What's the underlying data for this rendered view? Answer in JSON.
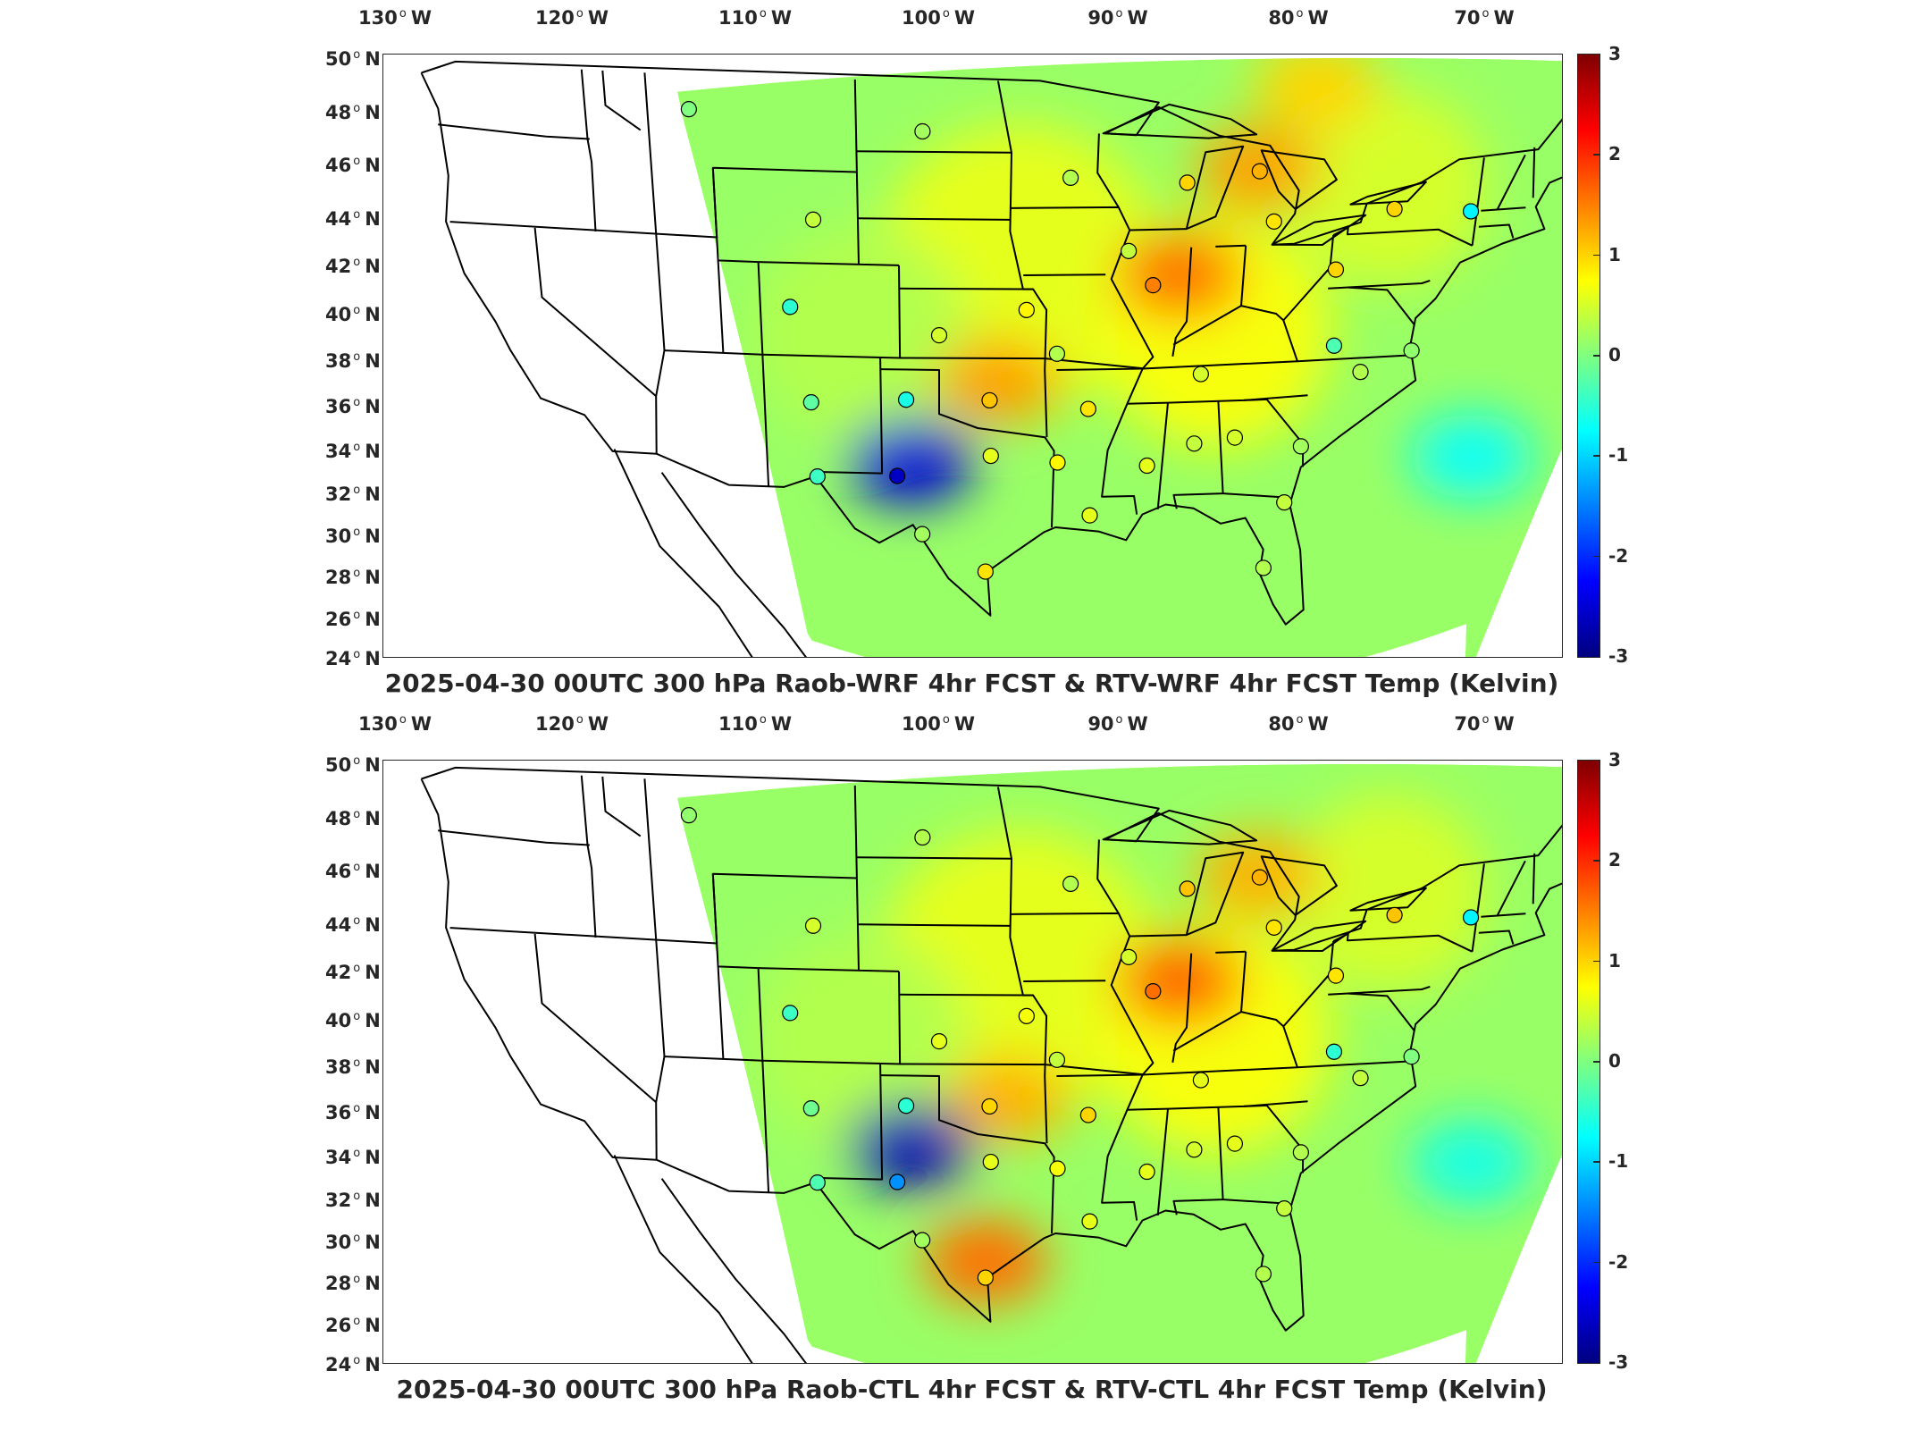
{
  "colormap": "jet",
  "colors": {
    "frame": "#262626",
    "map_lines": "#000000",
    "missing": "#ffffff"
  },
  "panels": [
    {
      "title": "2025-04-30 00UTC 300 hPa Raob-WRF 4hr FCST & RTV-WRF 4hr FCST Temp (Kelvin)",
      "lon_labels": [
        "130",
        "120",
        "110",
        "100",
        "90",
        "80",
        "70"
      ],
      "lon_suffix": "W",
      "lat_labels": [
        "50",
        "48",
        "46",
        "44",
        "42",
        "40",
        "38",
        "36",
        "34",
        "32",
        "30",
        "28",
        "26",
        "24"
      ],
      "lat_suffix": "N",
      "colorbar": {
        "ticks": [
          "3",
          "2",
          "1",
          "0",
          "-1",
          "-2",
          "-3"
        ],
        "min": -3,
        "max": 3
      },
      "field_anomalies": [
        {
          "region": "upper midwest / illinois",
          "lon": -88,
          "lat": 40.5,
          "value": 1.6
        },
        {
          "region": "oklahoma",
          "lon": -97,
          "lat": 36,
          "value": 1.3
        },
        {
          "region": "michigan",
          "lon": -84.5,
          "lat": 45,
          "value": 1.3
        },
        {
          "region": "new mexico / west texas",
          "lon": -101.5,
          "lat": 32.5,
          "value": -2.5
        },
        {
          "region": "ontario",
          "lon": -82,
          "lat": 48.5,
          "value": 1.0
        },
        {
          "region": "atlantic offshore",
          "lon": -72,
          "lat": 32,
          "value": -0.7
        }
      ],
      "raob_stations": [
        {
          "lon": -112.0,
          "lat": 47.5,
          "value": 0.0
        },
        {
          "lon": -100.8,
          "lat": 46.8,
          "value": 0.2
        },
        {
          "lon": -93.6,
          "lat": 44.8,
          "value": 0.3
        },
        {
          "lon": -87.9,
          "lat": 44.5,
          "value": 1.0
        },
        {
          "lon": -84.4,
          "lat": 44.9,
          "value": 1.2
        },
        {
          "lon": -106.2,
          "lat": 42.9,
          "value": 0.4
        },
        {
          "lon": -90.6,
          "lat": 41.6,
          "value": 0.4
        },
        {
          "lon": -83.5,
          "lat": 42.7,
          "value": 0.9
        },
        {
          "lon": -77.6,
          "lat": 43.0,
          "value": 1.0
        },
        {
          "lon": -73.8,
          "lat": 42.7,
          "value": -0.8
        },
        {
          "lon": -89.3,
          "lat": 40.1,
          "value": 1.5
        },
        {
          "lon": -80.2,
          "lat": 40.5,
          "value": 1.0
        },
        {
          "lon": -107.5,
          "lat": 39.1,
          "value": -0.5
        },
        {
          "lon": -95.6,
          "lat": 39.1,
          "value": 0.8
        },
        {
          "lon": -100.0,
          "lat": 38.0,
          "value": 0.5
        },
        {
          "lon": -94.0,
          "lat": 37.2,
          "value": 0.3
        },
        {
          "lon": -79.9,
          "lat": 37.2,
          "value": -0.3
        },
        {
          "lon": -86.6,
          "lat": 36.2,
          "value": 0.5
        },
        {
          "lon": -75.9,
          "lat": 36.8,
          "value": 0.1
        },
        {
          "lon": -78.4,
          "lat": 36.0,
          "value": 0.3
        },
        {
          "lon": -106.6,
          "lat": 35.0,
          "value": -0.2
        },
        {
          "lon": -101.7,
          "lat": 35.2,
          "value": -0.6
        },
        {
          "lon": -97.4,
          "lat": 35.2,
          "value": 1.1
        },
        {
          "lon": -92.3,
          "lat": 34.8,
          "value": 0.9
        },
        {
          "lon": -97.3,
          "lat": 32.8,
          "value": 0.6
        },
        {
          "lon": -93.8,
          "lat": 32.5,
          "value": 0.8
        },
        {
          "lon": -89.1,
          "lat": 32.3,
          "value": 0.6
        },
        {
          "lon": -86.7,
          "lat": 33.2,
          "value": 0.4
        },
        {
          "lon": -84.6,
          "lat": 33.4,
          "value": 0.5
        },
        {
          "lon": -81.1,
          "lat": 32.9,
          "value": 0.2
        },
        {
          "lon": -106.4,
          "lat": 31.8,
          "value": -0.4
        },
        {
          "lon": -102.2,
          "lat": 31.9,
          "value": -2.6
        },
        {
          "lon": -92.0,
          "lat": 30.2,
          "value": 0.6
        },
        {
          "lon": -81.7,
          "lat": 30.5,
          "value": 0.4
        },
        {
          "lon": -100.9,
          "lat": 29.4,
          "value": 0.2
        },
        {
          "lon": -97.5,
          "lat": 27.8,
          "value": 0.9
        },
        {
          "lon": -82.5,
          "lat": 27.7,
          "value": 0.3
        }
      ]
    },
    {
      "title": "2025-04-30 00UTC 300 hPa Raob-CTL 4hr FCST & RTV-CTL 4hr FCST Temp (Kelvin)",
      "lon_labels": [
        "130",
        "120",
        "110",
        "100",
        "90",
        "80",
        "70"
      ],
      "lon_suffix": "W",
      "lat_labels": [
        "50",
        "48",
        "46",
        "44",
        "42",
        "40",
        "38",
        "36",
        "34",
        "32",
        "30",
        "28",
        "26",
        "24"
      ],
      "lat_suffix": "N",
      "colorbar": {
        "ticks": [
          "3",
          "2",
          "1",
          "0",
          "-1",
          "-2",
          "-3"
        ],
        "min": -3,
        "max": 3
      },
      "field_anomalies": [
        {
          "region": "upper midwest / illinois",
          "lon": -88,
          "lat": 40.5,
          "value": 1.7
        },
        {
          "region": "oklahoma",
          "lon": -96.5,
          "lat": 35.5,
          "value": 1.2
        },
        {
          "region": "michigan",
          "lon": -84.5,
          "lat": 45,
          "value": 1.2
        },
        {
          "region": "new mexico / west texas",
          "lon": -101.5,
          "lat": 33.5,
          "value": -2.7
        },
        {
          "region": "texas coast",
          "lon": -97.5,
          "lat": 28.5,
          "value": 1.6
        },
        {
          "region": "atlantic offshore",
          "lon": -72,
          "lat": 32,
          "value": -0.6
        }
      ],
      "raob_stations": [
        {
          "lon": -112.0,
          "lat": 47.5,
          "value": 0.1
        },
        {
          "lon": -100.8,
          "lat": 46.8,
          "value": 0.3
        },
        {
          "lon": -93.6,
          "lat": 44.8,
          "value": 0.3
        },
        {
          "lon": -87.9,
          "lat": 44.5,
          "value": 1.1
        },
        {
          "lon": -84.4,
          "lat": 44.9,
          "value": 1.2
        },
        {
          "lon": -106.2,
          "lat": 42.9,
          "value": 0.5
        },
        {
          "lon": -90.6,
          "lat": 41.6,
          "value": 0.5
        },
        {
          "lon": -83.5,
          "lat": 42.7,
          "value": 0.9
        },
        {
          "lon": -77.6,
          "lat": 43.0,
          "value": 1.1
        },
        {
          "lon": -73.8,
          "lat": 42.7,
          "value": -0.8
        },
        {
          "lon": -89.3,
          "lat": 40.1,
          "value": 1.6
        },
        {
          "lon": -80.2,
          "lat": 40.5,
          "value": 0.9
        },
        {
          "lon": -107.5,
          "lat": 39.1,
          "value": -0.4
        },
        {
          "lon": -95.6,
          "lat": 39.1,
          "value": 0.7
        },
        {
          "lon": -100.0,
          "lat": 38.0,
          "value": 0.6
        },
        {
          "lon": -94.0,
          "lat": 37.2,
          "value": 0.4
        },
        {
          "lon": -79.9,
          "lat": 37.2,
          "value": -0.5
        },
        {
          "lon": -86.6,
          "lat": 36.2,
          "value": 0.6
        },
        {
          "lon": -75.9,
          "lat": 36.8,
          "value": 0.0
        },
        {
          "lon": -78.4,
          "lat": 36.0,
          "value": 0.4
        },
        {
          "lon": -106.6,
          "lat": 35.0,
          "value": -0.1
        },
        {
          "lon": -101.7,
          "lat": 35.2,
          "value": -0.5
        },
        {
          "lon": -97.4,
          "lat": 35.2,
          "value": 1.0
        },
        {
          "lon": -92.3,
          "lat": 34.8,
          "value": 1.0
        },
        {
          "lon": -97.3,
          "lat": 32.8,
          "value": 0.6
        },
        {
          "lon": -93.8,
          "lat": 32.5,
          "value": 0.7
        },
        {
          "lon": -89.1,
          "lat": 32.3,
          "value": 0.6
        },
        {
          "lon": -86.7,
          "lat": 33.2,
          "value": 0.5
        },
        {
          "lon": -84.6,
          "lat": 33.4,
          "value": 0.6
        },
        {
          "lon": -81.1,
          "lat": 32.9,
          "value": 0.3
        },
        {
          "lon": -106.4,
          "lat": 31.8,
          "value": -0.3
        },
        {
          "lon": -102.2,
          "lat": 31.9,
          "value": -1.4
        },
        {
          "lon": -92.0,
          "lat": 30.2,
          "value": 0.6
        },
        {
          "lon": -81.7,
          "lat": 30.5,
          "value": 0.4
        },
        {
          "lon": -100.9,
          "lat": 29.4,
          "value": 0.2
        },
        {
          "lon": -97.5,
          "lat": 27.8,
          "value": 1.0
        },
        {
          "lon": -82.5,
          "lat": 27.7,
          "value": 0.3
        }
      ]
    }
  ]
}
